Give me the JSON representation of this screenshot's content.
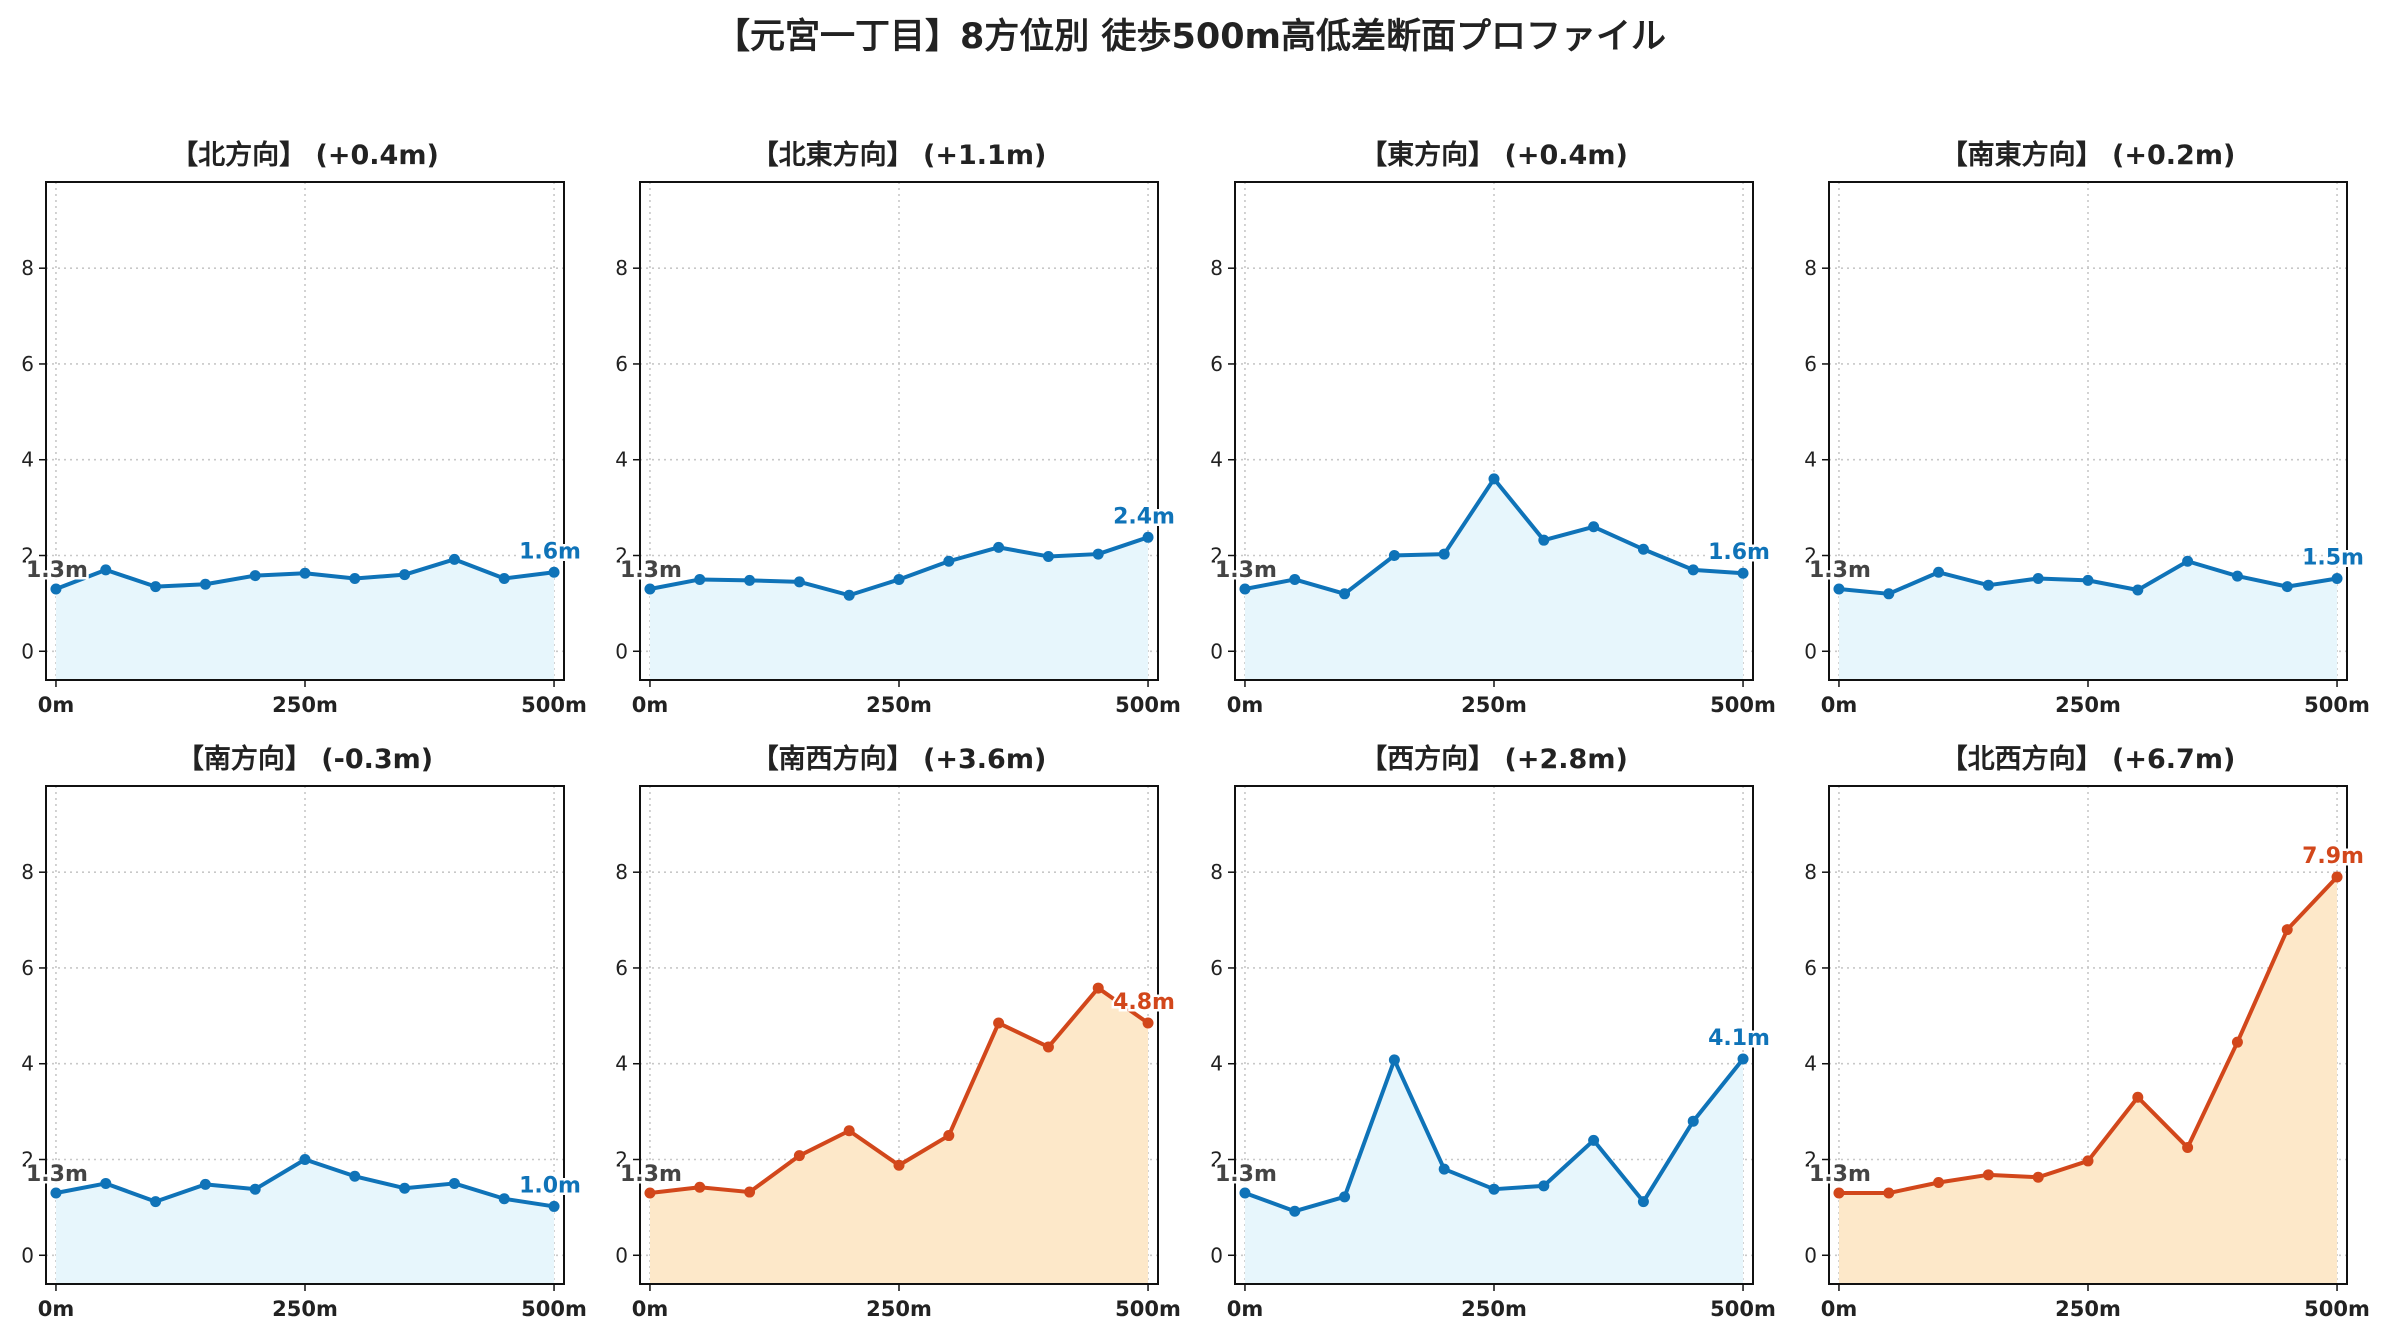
{
  "title": "【元宮一丁目】8方位別 徒歩500m高低差断面プロファイル",
  "colors": {
    "blue_line": "#0f73b8",
    "blue_fill": "#e7f6fc",
    "orange_line": "#d2471b",
    "orange_fill": "#fde8c9",
    "start_label": "#444444",
    "grid": "#c8c8c8"
  },
  "chart_data": [
    {
      "type": "line",
      "title": "【北方向】 (+0.4m)",
      "theme": "blue",
      "x_ticks": [
        "0m",
        "250m",
        "500m"
      ],
      "y_ticks": [
        "0",
        "2",
        "4",
        "6",
        "8"
      ],
      "ylim": [
        -0.6,
        9.8
      ],
      "xlim": [
        -10,
        510
      ],
      "x": [
        0,
        50,
        100,
        150,
        200,
        250,
        300,
        350,
        400,
        450,
        500
      ],
      "values": [
        1.3,
        1.7,
        1.35,
        1.4,
        1.58,
        1.63,
        1.52,
        1.6,
        1.92,
        1.52,
        1.65
      ],
      "start_label": "1.3m",
      "end_label": "1.6m",
      "grid": true
    },
    {
      "type": "line",
      "title": "【北東方向】 (+1.1m)",
      "theme": "blue",
      "x_ticks": [
        "0m",
        "250m",
        "500m"
      ],
      "y_ticks": [
        "0",
        "2",
        "4",
        "6",
        "8"
      ],
      "ylim": [
        -0.6,
        9.8
      ],
      "xlim": [
        -10,
        510
      ],
      "x": [
        0,
        50,
        100,
        150,
        200,
        250,
        300,
        350,
        400,
        450,
        500
      ],
      "values": [
        1.3,
        1.5,
        1.48,
        1.45,
        1.17,
        1.5,
        1.88,
        2.17,
        1.98,
        2.03,
        2.38
      ],
      "start_label": "1.3m",
      "end_label": "2.4m",
      "grid": true
    },
    {
      "type": "line",
      "title": "【東方向】 (+0.4m)",
      "theme": "blue",
      "x_ticks": [
        "0m",
        "250m",
        "500m"
      ],
      "y_ticks": [
        "0",
        "2",
        "4",
        "6",
        "8"
      ],
      "ylim": [
        -0.6,
        9.8
      ],
      "xlim": [
        -10,
        510
      ],
      "x": [
        0,
        50,
        100,
        150,
        200,
        250,
        300,
        350,
        400,
        450,
        500
      ],
      "values": [
        1.3,
        1.5,
        1.2,
        2.0,
        2.03,
        3.6,
        2.32,
        2.6,
        2.13,
        1.7,
        1.63
      ],
      "start_label": "1.3m",
      "end_label": "1.6m",
      "grid": true
    },
    {
      "type": "line",
      "title": "【南東方向】 (+0.2m)",
      "theme": "blue",
      "x_ticks": [
        "0m",
        "250m",
        "500m"
      ],
      "y_ticks": [
        "0",
        "2",
        "4",
        "6",
        "8"
      ],
      "ylim": [
        -0.6,
        9.8
      ],
      "xlim": [
        -10,
        510
      ],
      "x": [
        0,
        50,
        100,
        150,
        200,
        250,
        300,
        350,
        400,
        450,
        500
      ],
      "values": [
        1.3,
        1.2,
        1.65,
        1.38,
        1.52,
        1.48,
        1.28,
        1.88,
        1.57,
        1.35,
        1.52
      ],
      "start_label": "1.3m",
      "end_label": "1.5m",
      "grid": true
    },
    {
      "type": "line",
      "title": "【南方向】 (-0.3m)",
      "theme": "blue",
      "x_ticks": [
        "0m",
        "250m",
        "500m"
      ],
      "y_ticks": [
        "0",
        "2",
        "4",
        "6",
        "8"
      ],
      "ylim": [
        -0.6,
        9.8
      ],
      "xlim": [
        -10,
        510
      ],
      "x": [
        0,
        50,
        100,
        150,
        200,
        250,
        300,
        350,
        400,
        450,
        500
      ],
      "values": [
        1.3,
        1.5,
        1.12,
        1.48,
        1.38,
        2.0,
        1.65,
        1.4,
        1.5,
        1.18,
        1.02
      ],
      "start_label": "1.3m",
      "end_label": "1.0m",
      "grid": true
    },
    {
      "type": "area",
      "title": "【南西方向】 (+3.6m)",
      "theme": "orange",
      "x_ticks": [
        "0m",
        "250m",
        "500m"
      ],
      "y_ticks": [
        "0",
        "2",
        "4",
        "6",
        "8"
      ],
      "ylim": [
        -0.6,
        9.8
      ],
      "xlim": [
        -10,
        510
      ],
      "x": [
        0,
        50,
        100,
        150,
        200,
        250,
        300,
        350,
        400,
        450,
        500
      ],
      "values": [
        1.3,
        1.42,
        1.32,
        2.08,
        2.6,
        1.88,
        2.5,
        4.85,
        4.35,
        5.58,
        4.85
      ],
      "start_label": "1.3m",
      "end_label": "4.8m",
      "grid": true
    },
    {
      "type": "line",
      "title": "【西方向】 (+2.8m)",
      "theme": "blue",
      "x_ticks": [
        "0m",
        "250m",
        "500m"
      ],
      "y_ticks": [
        "0",
        "2",
        "4",
        "6",
        "8"
      ],
      "ylim": [
        -0.6,
        9.8
      ],
      "xlim": [
        -10,
        510
      ],
      "x": [
        0,
        50,
        100,
        150,
        200,
        250,
        300,
        350,
        400,
        450,
        500
      ],
      "values": [
        1.3,
        0.92,
        1.22,
        4.08,
        1.8,
        1.38,
        1.45,
        2.4,
        1.12,
        2.8,
        4.1
      ],
      "start_label": "1.3m",
      "end_label": "4.1m",
      "grid": true
    },
    {
      "type": "area",
      "title": "【北西方向】 (+6.7m)",
      "theme": "orange",
      "x_ticks": [
        "0m",
        "250m",
        "500m"
      ],
      "y_ticks": [
        "0",
        "2",
        "4",
        "6",
        "8"
      ],
      "ylim": [
        -0.6,
        9.8
      ],
      "xlim": [
        -10,
        510
      ],
      "x": [
        0,
        50,
        100,
        150,
        200,
        250,
        300,
        350,
        400,
        450,
        500
      ],
      "values": [
        1.3,
        1.3,
        1.52,
        1.68,
        1.63,
        1.97,
        3.3,
        2.25,
        4.45,
        6.8,
        7.9
      ],
      "start_label": "1.3m",
      "end_label": "7.9m",
      "grid": true
    }
  ]
}
